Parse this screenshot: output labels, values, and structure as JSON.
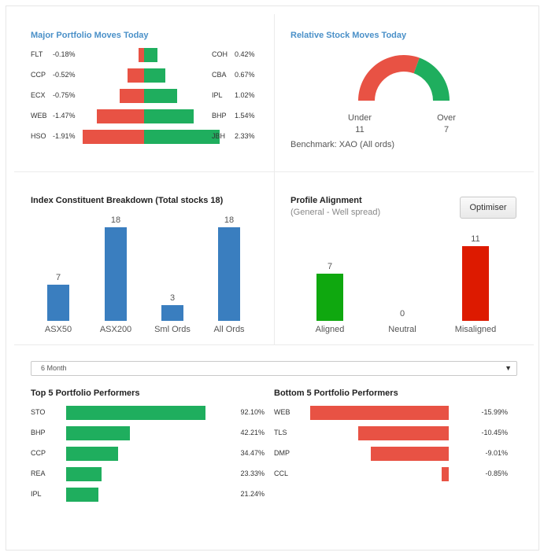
{
  "major_moves": {
    "title": "Major Portfolio Moves Today",
    "losers": [
      {
        "code": "FLT",
        "pct": "-0.18%",
        "value": -0.18
      },
      {
        "code": "CCP",
        "pct": "-0.52%",
        "value": -0.52
      },
      {
        "code": "ECX",
        "pct": "-0.75%",
        "value": -0.75
      },
      {
        "code": "WEB",
        "pct": "-1.47%",
        "value": -1.47
      },
      {
        "code": "HSO",
        "pct": "-1.91%",
        "value": -1.91
      }
    ],
    "gainers": [
      {
        "code": "COH",
        "pct": "0.42%",
        "value": 0.42
      },
      {
        "code": "CBA",
        "pct": "0.67%",
        "value": 0.67
      },
      {
        "code": "IPL",
        "pct": "1.02%",
        "value": 1.02
      },
      {
        "code": "BHP",
        "pct": "1.54%",
        "value": 1.54
      },
      {
        "code": "JBH",
        "pct": "2.33%",
        "value": 2.33
      }
    ]
  },
  "relative": {
    "title": "Relative Stock Moves Today",
    "under_label": "Under",
    "under_value": "11",
    "over_label": "Over",
    "over_value": "7",
    "benchmark": "Benchmark: XAO (All ords)"
  },
  "index_breakdown": {
    "title": "Index Constituent Breakdown (Total stocks 18)",
    "bars": [
      {
        "label": "ASX50",
        "value": 7
      },
      {
        "label": "ASX200",
        "value": 18
      },
      {
        "label": "Sml Ords",
        "value": 3
      },
      {
        "label": "All Ords",
        "value": 18
      }
    ]
  },
  "profile": {
    "title": "Profile Alignment",
    "subtitle": "(General - Well spread)",
    "button": "Optimiser",
    "bars": [
      {
        "label": "Aligned",
        "value": 7,
        "color": "#0fa80f"
      },
      {
        "label": "Neutral",
        "value": 0,
        "color": "#999999"
      },
      {
        "label": "Misaligned",
        "value": 11,
        "color": "#dd1a00"
      }
    ]
  },
  "period_select": {
    "value": "6 Month"
  },
  "top5": {
    "title": "Top 5 Portfolio Performers",
    "items": [
      {
        "code": "STO",
        "pct": "92.10%",
        "value": 92.1
      },
      {
        "code": "BHP",
        "pct": "42.21%",
        "value": 42.21
      },
      {
        "code": "CCP",
        "pct": "34.47%",
        "value": 34.47
      },
      {
        "code": "REA",
        "pct": "23.33%",
        "value": 23.33
      },
      {
        "code": "IPL",
        "pct": "21.24%",
        "value": 21.24
      }
    ]
  },
  "bottom5": {
    "title": "Bottom 5 Portfolio Performers",
    "items": [
      {
        "code": "WEB",
        "pct": "-15.99%",
        "value": -15.99
      },
      {
        "code": "TLS",
        "pct": "-10.45%",
        "value": -10.45
      },
      {
        "code": "DMP",
        "pct": "-9.01%",
        "value": -9.01
      },
      {
        "code": "CCL",
        "pct": "-0.85%",
        "value": -0.85
      }
    ]
  }
}
